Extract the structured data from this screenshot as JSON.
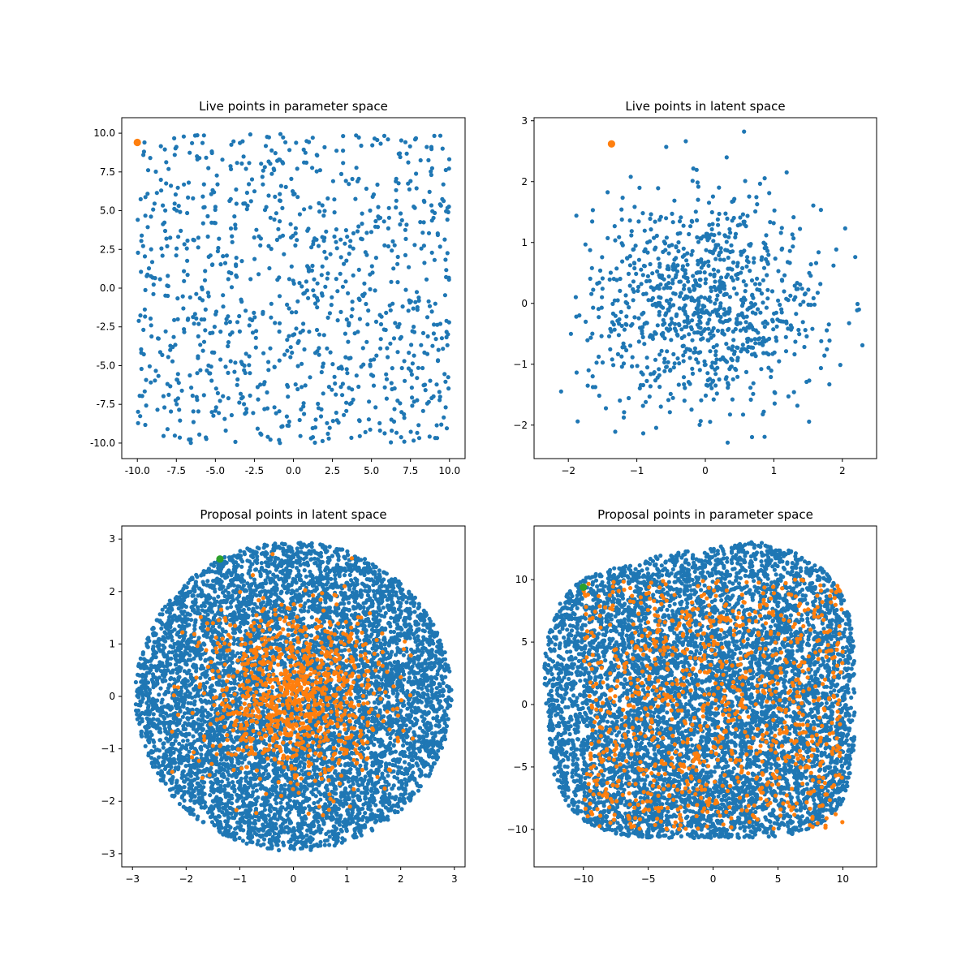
{
  "colors": {
    "blue": "#1f77b4",
    "orange": "#ff7f0e",
    "green": "#2ca02c"
  },
  "chart_data": [
    {
      "type": "scatter",
      "title": "Live points in parameter space",
      "xlim": [
        -11.0,
        11.0
      ],
      "ylim": [
        -11.0,
        11.0
      ],
      "xticks": [
        "-10.0",
        "-7.5",
        "-5.0",
        "-2.5",
        "0.0",
        "2.5",
        "5.0",
        "7.5",
        "10.0"
      ],
      "xtick_values": [
        -10,
        -7.5,
        -5,
        -2.5,
        0,
        2.5,
        5,
        7.5,
        10
      ],
      "yticks": [
        "-10.0",
        "-7.5",
        "-5.0",
        "-2.5",
        "0.0",
        "2.5",
        "5.0",
        "7.5",
        "10.0"
      ],
      "ytick_values": [
        -10,
        -7.5,
        -5,
        -2.5,
        0,
        2.5,
        5,
        7.5,
        10
      ],
      "grid": false,
      "series": [
        {
          "color": "blue",
          "marker_size": "small",
          "distribution": "uniform square",
          "count": 1000,
          "x_range": [
            -10,
            10
          ],
          "y_range": [
            -10,
            10
          ],
          "points": []
        },
        {
          "color": "orange",
          "marker_size": "large",
          "points": [
            [
              -10.0,
              9.4
            ]
          ]
        }
      ]
    },
    {
      "type": "scatter",
      "title": "Live points in latent space",
      "xlim": [
        -2.5,
        2.5
      ],
      "ylim": [
        -2.55,
        3.05
      ],
      "xticks": [
        "−2",
        "−1",
        "0",
        "1",
        "2"
      ],
      "xtick_values": [
        -2,
        -1,
        0,
        1,
        2
      ],
      "yticks": [
        "−2",
        "−1",
        "0",
        "1",
        "2",
        "3"
      ],
      "ytick_values": [
        -2,
        -1,
        0,
        1,
        2,
        3
      ],
      "grid": false,
      "series": [
        {
          "color": "blue",
          "marker_size": "small",
          "distribution": "gaussian blob",
          "count": 1000,
          "center": [
            0.0,
            0.0
          ],
          "spread": [
            0.85,
            0.85
          ],
          "bounds": {
            "x": [
              -2.35,
              2.35
            ],
            "y": [
              -2.3,
              2.85
            ]
          },
          "points": []
        },
        {
          "color": "orange",
          "marker_size": "large",
          "points": [
            [
              -1.37,
              2.62
            ]
          ]
        }
      ]
    },
    {
      "type": "scatter",
      "title": "Proposal points in latent space",
      "xlim": [
        -3.2,
        3.2
      ],
      "ylim": [
        -3.25,
        3.25
      ],
      "xticks": [
        "−3",
        "−2",
        "−1",
        "0",
        "1",
        "2",
        "3"
      ],
      "xtick_values": [
        -3,
        -2,
        -1,
        0,
        1,
        2,
        3
      ],
      "yticks": [
        "−3",
        "−2",
        "−1",
        "0",
        "1",
        "2",
        "3"
      ],
      "ytick_values": [
        -3,
        -2,
        -1,
        0,
        1,
        2,
        3
      ],
      "grid": false,
      "series": [
        {
          "color": "blue",
          "marker_size": "small",
          "distribution": "uniform disk",
          "count": 7000,
          "center": [
            0.0,
            0.0
          ],
          "radius": 2.95,
          "points": []
        },
        {
          "color": "orange",
          "marker_size": "small",
          "distribution": "gaussian blob",
          "count": 1000,
          "center": [
            0.0,
            0.0
          ],
          "spread": [
            0.85,
            0.85
          ],
          "bounds": {
            "x": [
              -2.35,
              2.35
            ],
            "y": [
              -2.3,
              2.85
            ]
          },
          "points": []
        },
        {
          "color": "green",
          "marker_size": "large",
          "points": [
            [
              -1.37,
              2.62
            ]
          ]
        }
      ]
    },
    {
      "type": "scatter",
      "title": "Proposal points in parameter space",
      "xlim": [
        -13.8,
        12.6
      ],
      "ylim": [
        -13.0,
        14.3
      ],
      "xticks": [
        "−10",
        "−5",
        "0",
        "5",
        "10"
      ],
      "xtick_values": [
        -10,
        -5,
        0,
        5,
        10
      ],
      "yticks": [
        "−10",
        "−5",
        "0",
        "5",
        "10"
      ],
      "ytick_values": [
        -10,
        -5,
        0,
        5,
        10
      ],
      "grid": false,
      "series": [
        {
          "color": "blue",
          "marker_size": "small",
          "distribution": "distorted square blob",
          "count": 7000,
          "x_range": [
            -12.6,
            11.2
          ],
          "y_range": [
            -11.6,
            13.1
          ],
          "points": []
        },
        {
          "color": "orange",
          "marker_size": "small",
          "distribution": "uniform square",
          "count": 1000,
          "x_range": [
            -10,
            10
          ],
          "y_range": [
            -10,
            10
          ],
          "points": []
        },
        {
          "color": "green",
          "marker_size": "large",
          "points": [
            [
              -10.0,
              9.4
            ]
          ]
        }
      ]
    }
  ]
}
